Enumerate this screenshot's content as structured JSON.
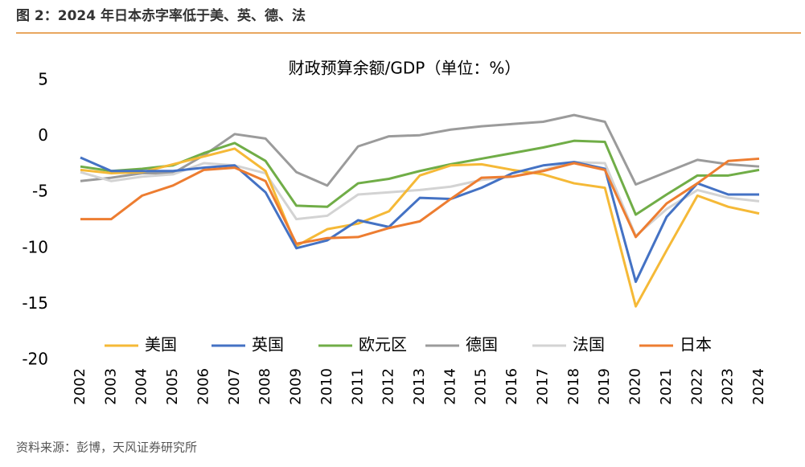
{
  "header": {
    "title": "图 2：2024 年日本赤字率低于美、英、德、法"
  },
  "footer": {
    "source": "资料来源：彭博，天风证券研究所"
  },
  "chart_data": {
    "type": "line",
    "title": "财政预算余额/GDP（单位：%）",
    "categories": [
      "2002",
      "2003",
      "2004",
      "2005",
      "2006",
      "2007",
      "2008",
      "2009",
      "2010",
      "2011",
      "2012",
      "2013",
      "2014",
      "2015",
      "2016",
      "2017",
      "2018",
      "2019",
      "2020",
      "2021",
      "2022",
      "2023",
      "2024"
    ],
    "ylim": [
      -20,
      5
    ],
    "yticks": [
      -20,
      -15,
      -10,
      -5,
      0,
      5
    ],
    "grid": false,
    "legend": "bottom",
    "series": [
      {
        "name": "美国",
        "color": "#f5b937",
        "values": [
          -3.0,
          -3.3,
          -3.2,
          -2.5,
          -1.8,
          -1.1,
          -3.1,
          -9.8,
          -8.3,
          -7.8,
          -6.7,
          -3.5,
          -2.6,
          -2.5,
          -3.0,
          -3.4,
          -4.2,
          -4.6,
          -15.2,
          -10.2,
          -5.3,
          -6.3,
          -6.9
        ]
      },
      {
        "name": "英国",
        "color": "#4472c4",
        "values": [
          -1.9,
          -3.1,
          -3.1,
          -3.1,
          -2.8,
          -2.6,
          -5.0,
          -10.0,
          -9.3,
          -7.5,
          -8.1,
          -5.5,
          -5.6,
          -4.6,
          -3.3,
          -2.6,
          -2.3,
          -2.9,
          -13.0,
          -7.2,
          -4.2,
          -5.2,
          -5.2
        ]
      },
      {
        "name": "欧元区",
        "color": "#70ad47",
        "values": [
          -2.7,
          -3.1,
          -2.9,
          -2.6,
          -1.5,
          -0.6,
          -2.2,
          -6.2,
          -6.3,
          -4.2,
          -3.8,
          -3.1,
          -2.5,
          -2.0,
          -1.5,
          -1.0,
          -0.4,
          -0.5,
          -7.0,
          -5.2,
          -3.5,
          -3.5,
          -3.0
        ]
      },
      {
        "name": "德国",
        "color": "#9b9b9b",
        "values": [
          -4.0,
          -3.7,
          -3.3,
          -3.3,
          -1.7,
          0.2,
          -0.2,
          -3.2,
          -4.4,
          -0.9,
          0.0,
          0.1,
          0.6,
          0.9,
          1.1,
          1.3,
          1.9,
          1.3,
          -4.3,
          -3.2,
          -2.1,
          -2.5,
          -2.7
        ]
      },
      {
        "name": "法国",
        "color": "#d3d3d3",
        "values": [
          -3.2,
          -4.0,
          -3.6,
          -3.4,
          -2.4,
          -2.6,
          -3.3,
          -7.4,
          -7.1,
          -5.2,
          -5.0,
          -4.8,
          -4.5,
          -3.9,
          -3.6,
          -3.0,
          -2.3,
          -2.4,
          -8.9,
          -6.5,
          -4.8,
          -5.5,
          -5.8
        ]
      },
      {
        "name": "日本",
        "color": "#ed7d31",
        "values": [
          -7.4,
          -7.4,
          -5.3,
          -4.4,
          -3.0,
          -2.8,
          -4.0,
          -9.6,
          -9.1,
          -9.0,
          -8.2,
          -7.6,
          -5.6,
          -3.7,
          -3.6,
          -3.1,
          -2.4,
          -3.0,
          -9.0,
          -6.0,
          -4.2,
          -2.2,
          -2.0
        ]
      }
    ]
  }
}
